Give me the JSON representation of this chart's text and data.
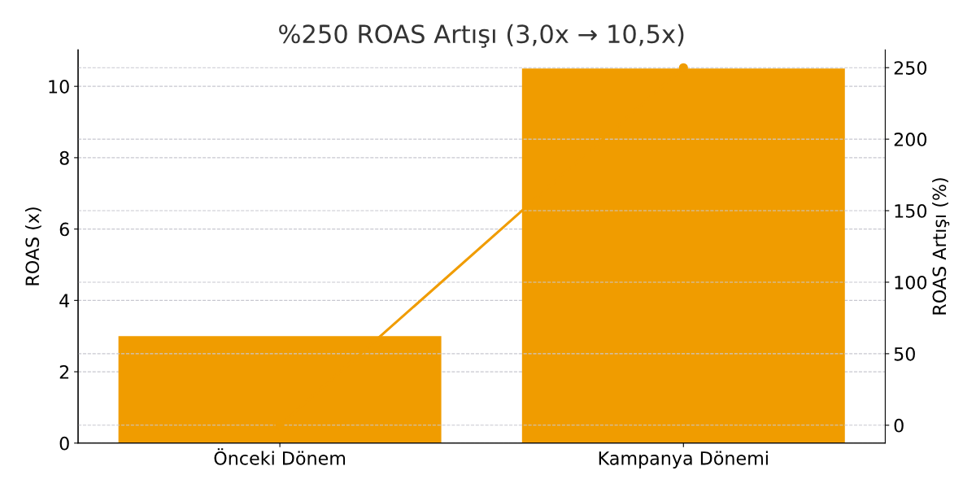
{
  "chart_data": {
    "type": "bar",
    "title": "%250 ROAS Artışı (3,0x → 10,5x)",
    "ylabel": "ROAS (x)",
    "y2label": "ROAS Artışı (%)",
    "categories": [
      "Önceki Dönem",
      "Kampanya Dönemi"
    ],
    "series": [
      {
        "color": "#f09c00",
        "values": [
          3.0,
          10.5
        ]
      },
      {
        "type": "line",
        "axis": "y2",
        "color": "#f09c00",
        "values": [
          0,
          250
        ]
      }
    ],
    "ylim": [
      0,
      11.025
    ],
    "yticks": [
      0,
      2,
      4,
      6,
      8,
      10
    ],
    "y2lim": [
      -12.5,
      262.5
    ],
    "y2ticks": [
      0,
      50,
      100,
      150,
      200,
      250
    ],
    "grid": true,
    "marker": "circle",
    "line_style": "solid"
  }
}
